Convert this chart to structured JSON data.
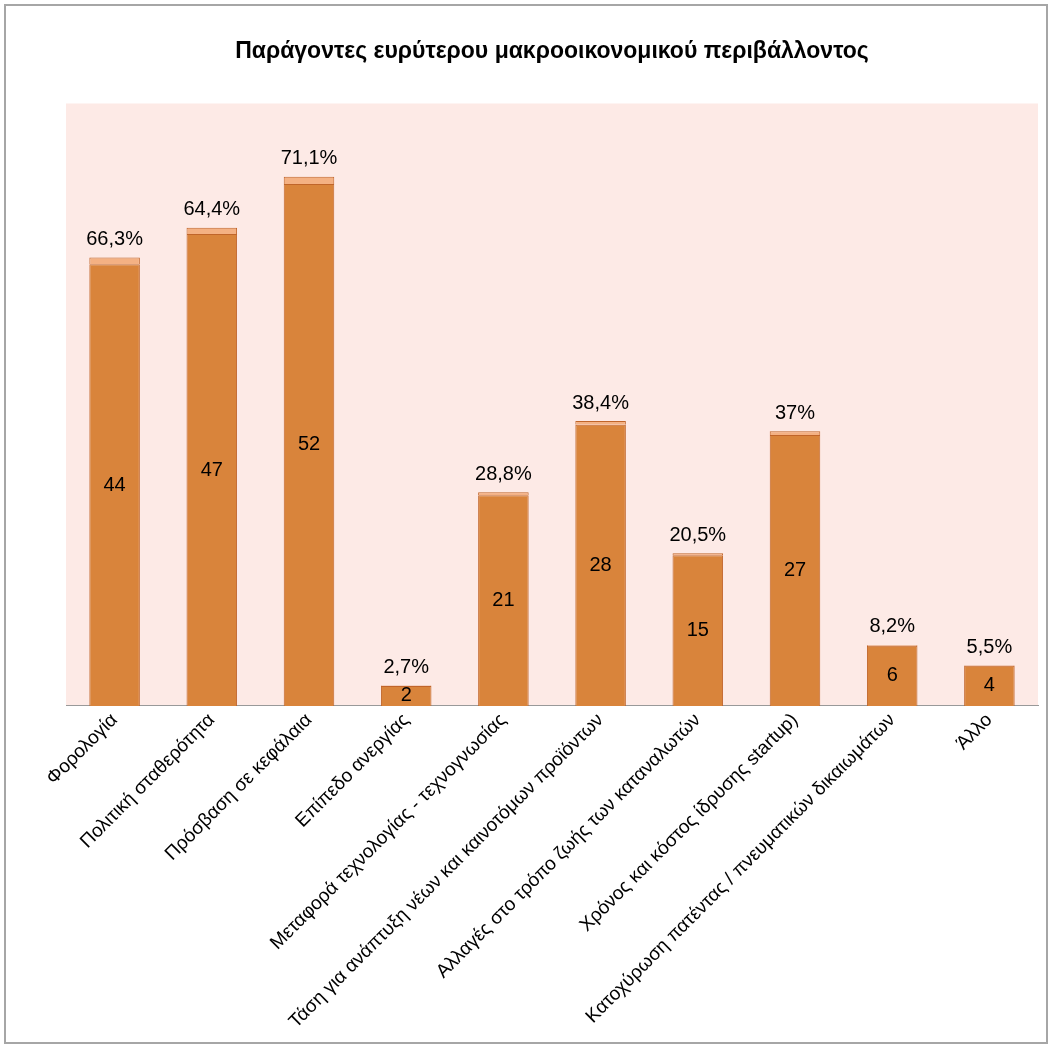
{
  "chart_data": {
    "type": "bar",
    "title": "Παράγοντες ευρύτερου μακροοικονομικού περιβάλλοντος",
    "stacked": true,
    "data_labels": true,
    "grid": false,
    "legend": false,
    "tick_labels": "x",
    "categories": [
      "Φορολογία",
      "Πολιτική σταθερότητα",
      "Πρόσβαση σε κεφάλαια",
      "Επίπεδο ανεργίας",
      "Μεταφορά τεχνολογίας - τεχνογνωσίας",
      "Τάση για ανάπτυξη νέων και καινοτόμων προϊόντων",
      "Αλλαγές στο τρόπο ζωής των καταναλωτών",
      "Χρόνος και κόστος ίδρυσης startup)",
      "Κατοχύρωση πατέντας / πνευματικών δικαιωμάτων",
      "Άλλο"
    ],
    "series": [
      {
        "color": "#d9843b",
        "values": [
          44,
          47,
          52,
          2,
          21,
          28,
          15,
          27,
          6,
          4
        ]
      },
      {
        "color": "#f4b183",
        "values": [
          0.663,
          0.644,
          0.711,
          0.027,
          0.288,
          0.384,
          0.205,
          0.37,
          0.082,
          0.055
        ],
        "value_labels": [
          "66,3%",
          "64,4%",
          "71,1%",
          "2,7%",
          "28,8%",
          "38,4%",
          "20,5%",
          "37%",
          "8,2%",
          "5,5%"
        ]
      }
    ]
  }
}
